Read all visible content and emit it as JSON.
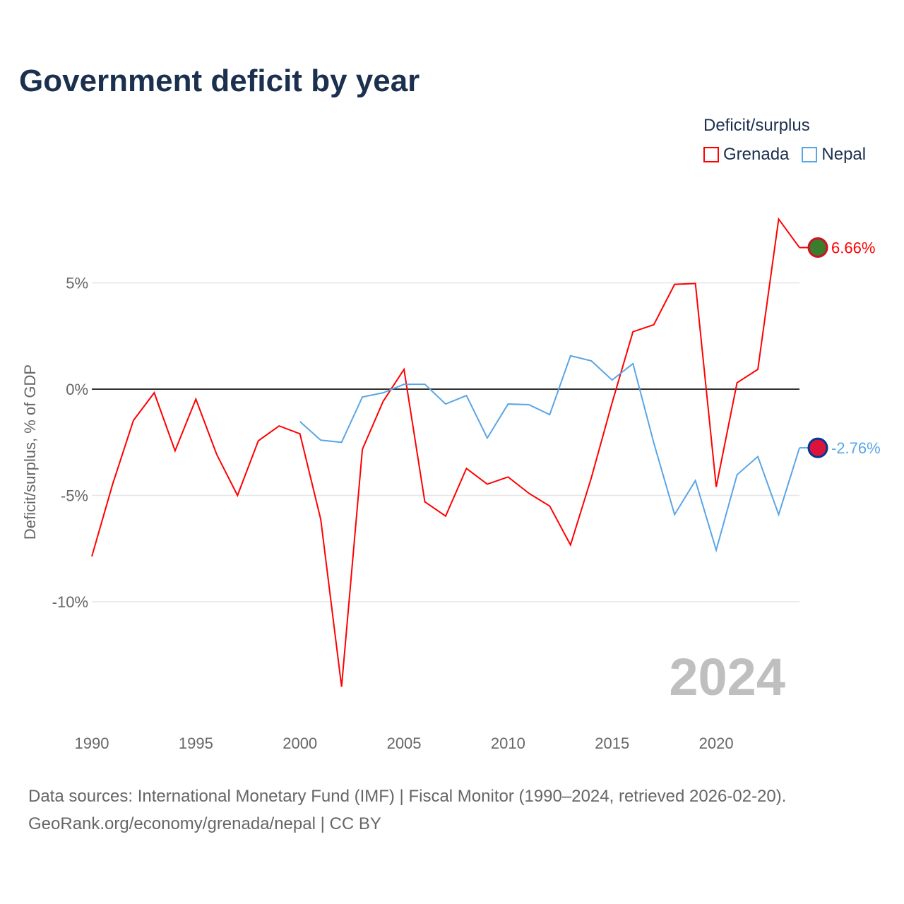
{
  "title": "Government deficit by year",
  "legend": {
    "title": "Deficit/surplus",
    "items": [
      {
        "name": "Grenada",
        "color": "#ff0000"
      },
      {
        "name": "Nepal",
        "color": "#5aa5e6"
      }
    ]
  },
  "source": {
    "line1": "Data sources: International Monetary Fund (IMF) | Fiscal Monitor (1990–2024, retrieved 2026-02-20).",
    "line2": "GeoRank.org/economy/grenada/nepal | CC BY"
  },
  "chart_data": {
    "type": "line",
    "title": "Government deficit by year",
    "ylabel": "Deficit/surplus, % of GDP",
    "xlabel": "",
    "xlim": [
      1990,
      2024
    ],
    "ylim": [
      -14.5,
      9
    ],
    "x_ticks": [
      "1990",
      "1995",
      "2000",
      "2005",
      "2010",
      "2015",
      "2020"
    ],
    "y_ticks": [
      {
        "v": 5,
        "label": "5%"
      },
      {
        "v": 0,
        "label": "0%"
      },
      {
        "v": -5,
        "label": "-5%"
      },
      {
        "v": -10,
        "label": "-10%"
      }
    ],
    "year_watermark": "2024",
    "series": [
      {
        "name": "Grenada",
        "color": "#ff0000",
        "end_label": "6.66%",
        "start_year": 1990,
        "values": [
          -7.87,
          -4.47,
          -1.47,
          -0.17,
          -2.9,
          -0.47,
          -3.07,
          -5.0,
          -2.43,
          -1.73,
          -2.1,
          -6.13,
          -14.0,
          -2.83,
          -0.57,
          0.93,
          -5.3,
          -5.97,
          -3.73,
          -4.47,
          -4.13,
          -4.9,
          -5.5,
          -7.33,
          -4.17,
          -0.63,
          2.7,
          3.03,
          4.93,
          4.97,
          -4.6,
          0.3,
          0.93,
          8.0,
          6.66
        ]
      },
      {
        "name": "Nepal",
        "color": "#5aa5e6",
        "end_label": "-2.76%",
        "start_year": 2000,
        "values": [
          -1.53,
          -2.4,
          -2.5,
          -0.37,
          -0.17,
          0.23,
          0.23,
          -0.7,
          -0.3,
          -2.3,
          -0.7,
          -0.73,
          -1.2,
          1.57,
          1.33,
          0.43,
          1.2,
          -2.53,
          -5.9,
          -4.3,
          -7.57,
          -4.03,
          -3.17,
          -5.9,
          -2.76
        ]
      }
    ]
  }
}
